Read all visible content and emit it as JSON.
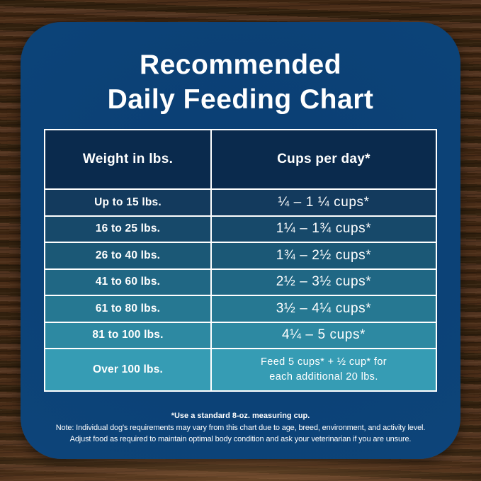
{
  "title": {
    "line1": "Recommended",
    "line2": "Daily Feeding Chart"
  },
  "table": {
    "col1_header": "Weight in lbs.",
    "col2_header": "Cups per day*",
    "rows": [
      {
        "weight": "Up to 15 lbs.",
        "cups": "¼ – 1 ¼ cups*"
      },
      {
        "weight": "16 to 25 lbs.",
        "cups": "1¼ – 1¾  cups*"
      },
      {
        "weight": "26 to 40 lbs.",
        "cups": "1¾ – 2½ cups*"
      },
      {
        "weight": "41 to 60 lbs.",
        "cups": "2½ – 3½ cups*"
      },
      {
        "weight": "61 to 80 lbs.",
        "cups": "3½ – 4¼ cups*"
      },
      {
        "weight": "81 to 100 lbs.",
        "cups": "4¼ – 5 cups*"
      },
      {
        "weight": "Over 100 lbs.",
        "cups_line1": "Feed 5 cups* + ½ cup* for",
        "cups_line2": "each additional 20 lbs."
      }
    ]
  },
  "notes": {
    "measuring_cup": "*Use a standard 8-oz. measuring cup.",
    "note_line1": "Note: Individual dog's requirements may vary from this chart due to age, breed, environment, and activity level.",
    "note_line2": "Adjust food as required to maintain optimal body condition and ask your veterinarian if you are unsure."
  },
  "colors": {
    "card_bg": "#0d4479",
    "header_row_bg": "#0a2a4d",
    "row_bgs": [
      "#133a5d",
      "#17496a",
      "#1b5876",
      "#206784",
      "#267892",
      "#2d89a2",
      "#369cb4"
    ],
    "border": "#ffffff",
    "text": "#ffffff"
  },
  "chart_data": {
    "type": "table",
    "title": "Recommended Daily Feeding Chart",
    "columns": [
      "Weight in lbs.",
      "Cups per day*"
    ],
    "rows": [
      [
        "Up to 15 lbs.",
        "¼ – 1 ¼ cups*"
      ],
      [
        "16 to 25 lbs.",
        "1¼ – 1¾ cups*"
      ],
      [
        "26 to 40 lbs.",
        "1¾ – 2½ cups*"
      ],
      [
        "41 to 60 lbs.",
        "2½ – 3½ cups*"
      ],
      [
        "61 to 80 lbs.",
        "3½ – 4¼ cups*"
      ],
      [
        "81 to 100 lbs.",
        "4¼ – 5 cups*"
      ],
      [
        "Over 100 lbs.",
        "Feed 5 cups* + ½ cup* for each additional 20 lbs."
      ]
    ],
    "footnotes": [
      "*Use a standard 8-oz. measuring cup.",
      "Note: Individual dog's requirements may vary from this chart due to age, breed, environment, and activity level.",
      "Adjust food as required to maintain optimal body condition and ask your veterinarian if you are unsure."
    ]
  }
}
